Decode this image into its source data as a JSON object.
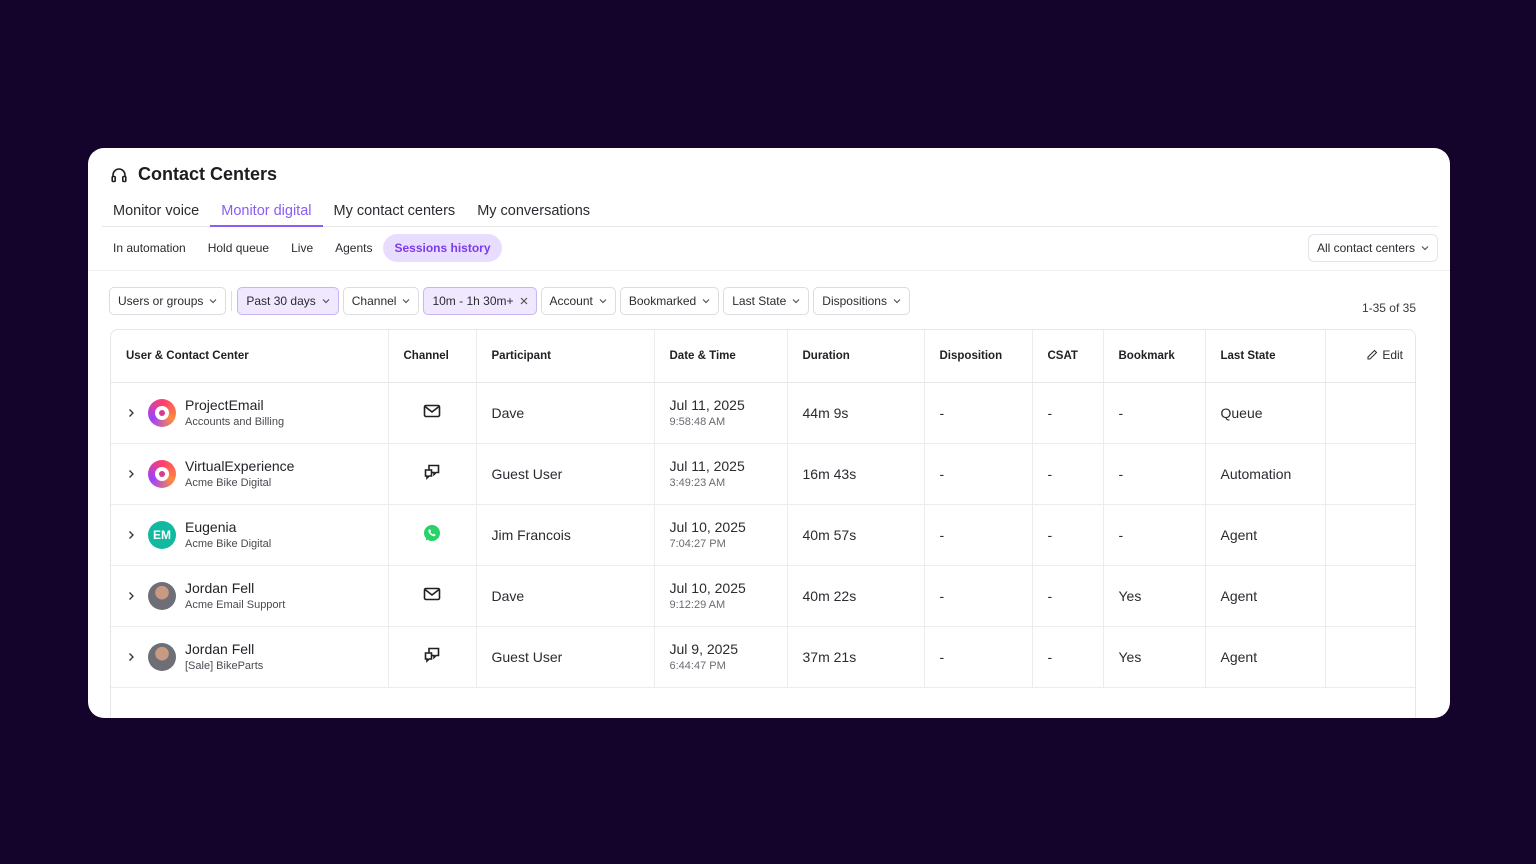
{
  "header": {
    "title": "Contact Centers",
    "icon": "headset-icon"
  },
  "main_tabs": [
    {
      "label": "Monitor voice",
      "active": false
    },
    {
      "label": "Monitor digital",
      "active": true
    },
    {
      "label": "My contact centers",
      "active": false
    },
    {
      "label": "My conversations",
      "active": false
    }
  ],
  "sub_tabs": [
    {
      "label": "In automation",
      "active": false
    },
    {
      "label": "Hold queue",
      "active": false
    },
    {
      "label": "Live",
      "active": false
    },
    {
      "label": "Agents",
      "active": false
    },
    {
      "label": "Sessions history",
      "active": true
    }
  ],
  "contact_center_select": {
    "label": "All contact centers"
  },
  "filters": {
    "users": "Users or groups",
    "date": "Past 30 days",
    "channel": "Channel",
    "duration": "10m - 1h 30m+",
    "account": "Account",
    "bookmarked": "Bookmarked",
    "last_state": "Last State",
    "dispositions": "Dispositions"
  },
  "result_count": "1-35 of 35",
  "columns": {
    "user": "User & Contact Center",
    "channel": "Channel",
    "participant": "Participant",
    "datetime": "Date & Time",
    "duration": "Duration",
    "disposition": "Disposition",
    "csat": "CSAT",
    "bookmark": "Bookmark",
    "last_state": "Last State",
    "edit": "Edit"
  },
  "rows": [
    {
      "name": "ProjectEmail",
      "center": "Accounts and Billing",
      "avatar": "bot",
      "channel": "email-icon",
      "participant": "Dave",
      "date": "Jul 11, 2025",
      "time": "9:58:48 AM",
      "duration": "44m 9s",
      "disposition": "-",
      "csat": "-",
      "bookmark": "-",
      "last_state": "Queue"
    },
    {
      "name": "VirtualExperience",
      "center": "Acme Bike Digital",
      "avatar": "bot",
      "channel": "chat-icon",
      "participant": "Guest User",
      "date": "Jul 11, 2025",
      "time": "3:49:23 AM",
      "duration": "16m 43s",
      "disposition": "-",
      "csat": "-",
      "bookmark": "-",
      "last_state": "Automation"
    },
    {
      "name": "Eugenia",
      "center": "Acme Bike Digital",
      "avatar": "EM",
      "channel": "whatsapp-icon",
      "participant": "Jim Francois",
      "date": "Jul 10, 2025",
      "time": "7:04:27 PM",
      "duration": "40m 57s",
      "disposition": "-",
      "csat": "-",
      "bookmark": "-",
      "last_state": "Agent"
    },
    {
      "name": "Jordan Fell",
      "center": "Acme Email Support",
      "avatar": "photo",
      "channel": "email-icon",
      "participant": "Dave",
      "date": "Jul 10, 2025",
      "time": "9:12:29 AM",
      "duration": "40m 22s",
      "disposition": "-",
      "csat": "-",
      "bookmark": "Yes",
      "last_state": "Agent"
    },
    {
      "name": "Jordan Fell",
      "center": "[Sale] BikeParts",
      "avatar": "photo",
      "channel": "chat-icon",
      "participant": "Guest User",
      "date": "Jul 9, 2025",
      "time": "6:44:47 PM",
      "duration": "37m 21s",
      "disposition": "-",
      "csat": "-",
      "bookmark": "Yes",
      "last_state": "Agent"
    }
  ]
}
